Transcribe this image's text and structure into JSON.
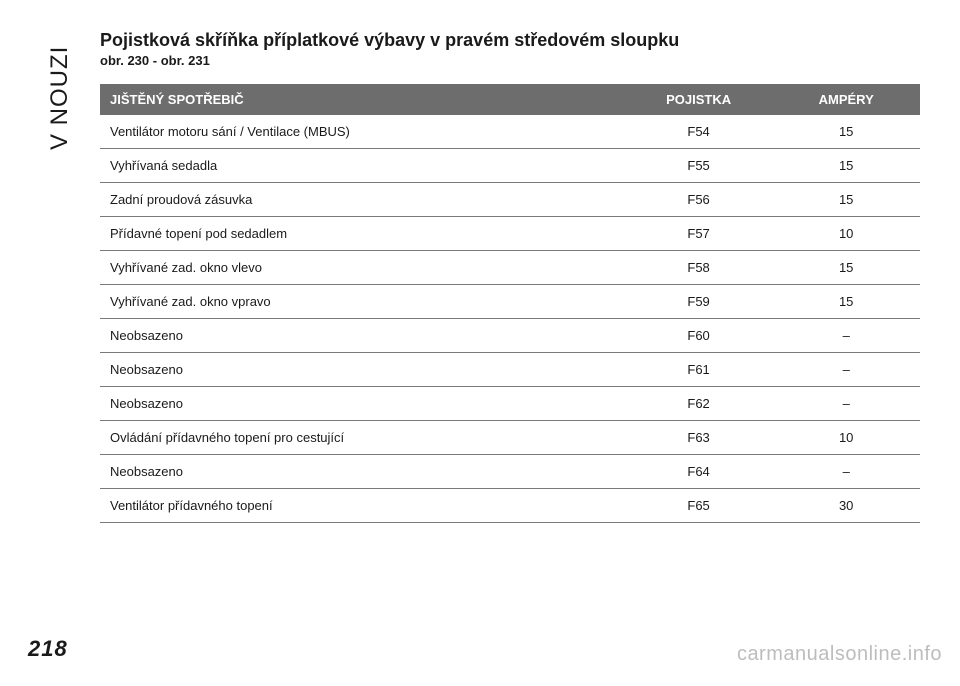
{
  "side_label": "V NOUZI",
  "title": "Pojistková skříňka příplatkové výbavy v pravém středovém sloupku",
  "subtitle": "obr. 230 - obr. 231",
  "page_number": "218",
  "watermark": "carmanualsonline.info",
  "table": {
    "header_bg": "#6d6d6d",
    "header_fg": "#ffffff",
    "row_border": "#7a7a7a",
    "font_size": 13,
    "columns": [
      {
        "label": "JIŠTĚNÝ SPOTŘEBIČ",
        "align": "left",
        "width_pct": 64
      },
      {
        "label": "POJISTKA",
        "align": "center",
        "width_pct": 18
      },
      {
        "label": "AMPÉRY",
        "align": "center",
        "width_pct": 18
      }
    ],
    "rows": [
      [
        "Ventilátor motoru sání / Ventilace (MBUS)",
        "F54",
        "15"
      ],
      [
        "Vyhřívaná sedadla",
        "F55",
        "15"
      ],
      [
        "Zadní proudová zásuvka",
        "F56",
        "15"
      ],
      [
        "Přídavné topení pod sedadlem",
        "F57",
        "10"
      ],
      [
        "Vyhřívané zad. okno vlevo",
        "F58",
        "15"
      ],
      [
        "Vyhřívané zad. okno vpravo",
        "F59",
        "15"
      ],
      [
        "Neobsazeno",
        "F60",
        "–"
      ],
      [
        "Neobsazeno",
        "F61",
        "–"
      ],
      [
        "Neobsazeno",
        "F62",
        "–"
      ],
      [
        "Ovládání přídavného topení pro cestující",
        "F63",
        "10"
      ],
      [
        "Neobsazeno",
        "F64",
        "–"
      ],
      [
        "Ventilátor přídavného topení",
        "F65",
        "30"
      ]
    ]
  }
}
